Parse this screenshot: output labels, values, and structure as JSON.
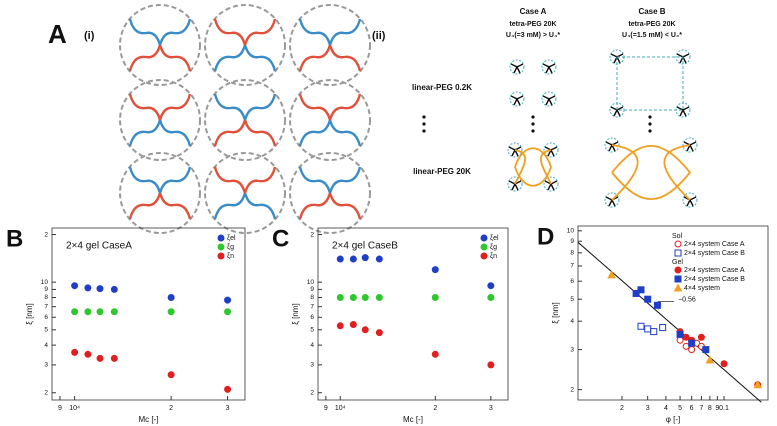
{
  "panel_a": {
    "label": "A",
    "sub_i": "(i)",
    "sub_ii": "(ii)",
    "case_a": {
      "title": "Case A",
      "tetra": "tetra-PEG 20K",
      "condition": "U₄(=3 mM) > U₄*"
    },
    "case_b": {
      "title": "Case B",
      "tetra": "tetra-PEG 20K",
      "condition": "U₄(=1.5 mM) < U₄*"
    },
    "rows": [
      "linear-PEG 0.2K",
      "linear-PEG 20K"
    ]
  },
  "chart_data": [
    {
      "panel": "B",
      "type": "scatter",
      "annotation": "2×4 gel CaseA",
      "xlabel": "Mc [-]",
      "ylabel": "ξ [nm]",
      "xscale": "log",
      "yscale": "log",
      "xlim": [
        8500,
        34000
      ],
      "ylim": [
        1.8,
        22
      ],
      "xticks": [
        {
          "value": 9000,
          "label": "9"
        },
        {
          "value": 10000,
          "label": "10⁴"
        },
        {
          "value": 20000,
          "label": "2"
        },
        {
          "value": 30000,
          "label": "3"
        }
      ],
      "yticks": [
        2,
        3,
        4,
        5,
        6,
        7,
        8,
        9,
        10,
        {
          "value": 20,
          "label": "2"
        }
      ],
      "legend": "top-right",
      "series": [
        {
          "name": "ξel",
          "color": "#1f3fc8",
          "marker": "circle",
          "filled": true,
          "x": [
            10000,
            11000,
            12000,
            13300,
            20000,
            30000
          ],
          "values": [
            9.5,
            9.2,
            9.1,
            9.0,
            8.0,
            7.7
          ]
        },
        {
          "name": "ξg",
          "color": "#2ec82e",
          "marker": "circle",
          "filled": true,
          "x": [
            10000,
            11000,
            12000,
            13300,
            20000,
            30000
          ],
          "values": [
            6.5,
            6.5,
            6.5,
            6.5,
            6.5,
            6.5
          ]
        },
        {
          "name": "ξn",
          "color": "#e02020",
          "marker": "circle",
          "filled": true,
          "x": [
            10000,
            11000,
            12000,
            13300,
            20000,
            30000
          ],
          "values": [
            3.6,
            3.5,
            3.3,
            3.3,
            2.6,
            2.1
          ]
        }
      ]
    },
    {
      "panel": "C",
      "type": "scatter",
      "annotation": "2×4 gel CaseB",
      "xlabel": "Mc [-]",
      "ylabel": "ξ [nm]",
      "xscale": "log",
      "yscale": "log",
      "xlim": [
        8500,
        34000
      ],
      "ylim": [
        1.8,
        22
      ],
      "xticks": [
        {
          "value": 9000,
          "label": "9"
        },
        {
          "value": 10000,
          "label": "10⁴"
        },
        {
          "value": 20000,
          "label": "2"
        },
        {
          "value": 30000,
          "label": "3"
        }
      ],
      "yticks": [
        2,
        3,
        4,
        5,
        6,
        7,
        8,
        9,
        10,
        {
          "value": 20,
          "label": "2"
        }
      ],
      "legend": "top-right",
      "series": [
        {
          "name": "ξel",
          "color": "#1f3fc8",
          "marker": "circle",
          "filled": true,
          "x": [
            10000,
            11000,
            12000,
            13300,
            20000,
            30000
          ],
          "values": [
            14,
            14,
            14.3,
            14,
            12,
            9.5
          ]
        },
        {
          "name": "ξg",
          "color": "#2ec82e",
          "marker": "circle",
          "filled": true,
          "x": [
            10000,
            11000,
            12000,
            13300,
            20000,
            30000
          ],
          "values": [
            8,
            8,
            8,
            8,
            8,
            8
          ]
        },
        {
          "name": "ξn",
          "color": "#e02020",
          "marker": "circle",
          "filled": true,
          "x": [
            10000,
            11000,
            12000,
            13300,
            20000,
            30000
          ],
          "values": [
            5.3,
            5.4,
            5.0,
            4.8,
            3.5,
            3.0
          ]
        }
      ]
    },
    {
      "panel": "D",
      "type": "scatter",
      "xlabel": "φ [-]",
      "ylabel": "ξ [nm]",
      "xscale": "log",
      "yscale": "log",
      "xlim": [
        0.01,
        0.2
      ],
      "ylim": [
        1.8,
        10.5
      ],
      "xticks": [
        {
          "value": 0.02,
          "label": "2"
        },
        {
          "value": 0.03,
          "label": "3"
        },
        {
          "value": 0.04,
          "label": "4"
        },
        {
          "value": 0.05,
          "label": "5"
        },
        {
          "value": 0.06,
          "label": "6"
        },
        {
          "value": 0.07,
          "label": "7"
        },
        {
          "value": 0.08,
          "label": "8"
        },
        {
          "value": 0.09,
          "label": "9"
        },
        0.1
      ],
      "yticks": [
        2,
        3,
        4,
        5,
        6,
        7,
        8,
        9,
        10
      ],
      "legend": "top-right",
      "fit": {
        "x": [
          0.01,
          0.18
        ],
        "y": [
          8.9,
          1.76
        ],
        "slope_label": "−0.56"
      },
      "series": [
        {
          "group": "Sol",
          "name": "2×4 system Case A",
          "color": "#e02020",
          "marker": "circle",
          "filled": false,
          "x": [
            0.05,
            0.055,
            0.06,
            0.065,
            0.07
          ],
          "values": [
            3.3,
            3.1,
            3.0,
            3.2,
            3.1
          ]
        },
        {
          "group": "Sol",
          "name": "2×4 system Case B",
          "color": "#1f3fc8",
          "marker": "square",
          "filled": false,
          "x": [
            0.027,
            0.03,
            0.033,
            0.038
          ],
          "values": [
            3.8,
            3.7,
            3.6,
            3.75
          ]
        },
        {
          "group": "Gel",
          "name": "2×4 system Case A",
          "color": "#e02020",
          "marker": "circle",
          "filled": true,
          "x": [
            0.05,
            0.055,
            0.06,
            0.07,
            0.1,
            0.17
          ],
          "values": [
            3.6,
            3.4,
            3.3,
            3.4,
            2.6,
            2.1
          ]
        },
        {
          "group": "Gel",
          "name": "2×4 system Case B",
          "color": "#1f3fc8",
          "marker": "square",
          "filled": true,
          "x": [
            0.025,
            0.027,
            0.03,
            0.035,
            0.05,
            0.06,
            0.075
          ],
          "values": [
            5.3,
            5.5,
            5.0,
            4.7,
            3.5,
            3.2,
            3.0
          ]
        },
        {
          "group": "Gel",
          "name": "4×4 system",
          "color": "#f0a020",
          "marker": "triangle",
          "filled": true,
          "x": [
            0.017,
            0.08,
            0.17
          ],
          "values": [
            6.4,
            2.7,
            2.1
          ]
        }
      ]
    }
  ]
}
